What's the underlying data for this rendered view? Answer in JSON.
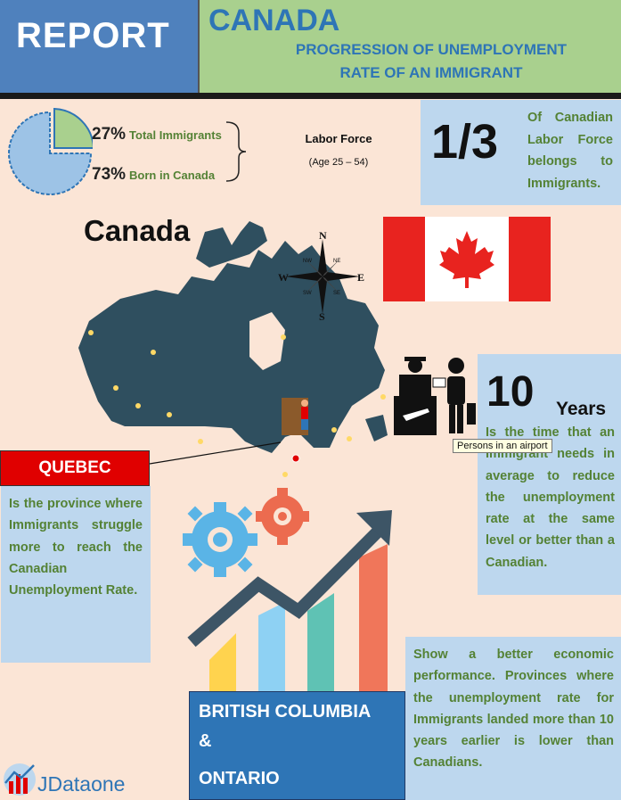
{
  "header": {
    "report_label": "REPORT",
    "country": "CANADA",
    "subtitle_line1": "PROGRESSION OF UNEMPLOYMENT",
    "subtitle_line2": "RATE OF AN IMMIGRANT"
  },
  "labor_force": {
    "immigrants_pct": "27%",
    "immigrants_label": "Total Immigrants",
    "born_pct": "73%",
    "born_label": "Born in Canada",
    "title": "Labor Force",
    "age_range": "(Age 25 – 54)",
    "pie_values": [
      27,
      73
    ]
  },
  "one_third": {
    "number": "1/3",
    "text": "Of Canadian Labor Force belongs to Immigrants."
  },
  "map": {
    "title": "Canada",
    "compass": {
      "n": "N",
      "s": "S",
      "e": "E",
      "w": "W",
      "nw": "NW",
      "ne": "NE",
      "sw": "SW",
      "se": "SE"
    }
  },
  "years": {
    "number": "10",
    "label": "Years",
    "text": "Is the time that an Immigrant needs in average to reduce the unemployment rate at the same level or better than a Canadian.",
    "tooltip": "Persons in an airport"
  },
  "quebec": {
    "label": "QUEBEC",
    "text": "Is the province where Immigrants struggle more to reach the Canadian Unemployment Rate."
  },
  "economic": {
    "text": "Show a better economic performance. Provinces where the unemployment rate for Immigrants landed more than 10 years earlier is lower than Canadians."
  },
  "provinces": {
    "line1": "BRITISH COLUMBIA",
    "line2": "&",
    "line3": "ONTARIO"
  },
  "logo": {
    "text": "JDataone"
  },
  "colors": {
    "accent_blue": "#2e75b6",
    "green_text": "#548235",
    "light_blue_box": "#bdd7ee",
    "peach_bg": "#fbe5d6",
    "red": "#e00000"
  }
}
